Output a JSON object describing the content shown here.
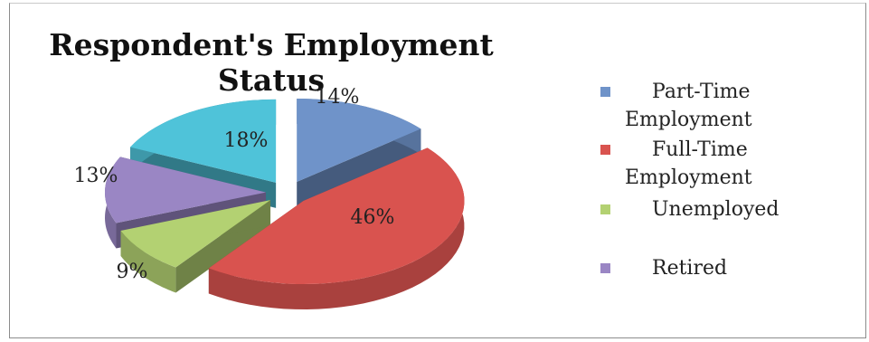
{
  "chart_data": {
    "type": "pie",
    "title": "Respondent's Employment Status",
    "categories": [
      "Part-Time Employment",
      "Full-Time Employment",
      "Unemployed",
      "Retired"
    ],
    "slices": [
      {
        "label": "Part-Time Employment",
        "value": 14,
        "display": "14%",
        "color": "#6f93c9"
      },
      {
        "label": "Full-Time Employment",
        "value": 46,
        "display": "46%",
        "color": "#d9534f"
      },
      {
        "label": "Unemployed",
        "value": 9,
        "display": "9%",
        "color": "#b3d172"
      },
      {
        "label": "Retired",
        "value": 13,
        "display": "13%",
        "color": "#9a86c4"
      },
      {
        "label": "",
        "value": 18,
        "display": "18%",
        "color": "#4fc3d9"
      }
    ],
    "legend": [
      {
        "line1": "Part-Time",
        "line2": "Employment",
        "color": "#6f93c9"
      },
      {
        "line1": "Full-Time",
        "line2": "Employment",
        "color": "#d9534f"
      },
      {
        "line1": "Unemployed",
        "line2": "",
        "color": "#b3d172"
      },
      {
        "line1": "Retired",
        "line2": "",
        "color": "#9a86c4"
      }
    ],
    "legend_position": "right",
    "style": "3d-exploded"
  }
}
